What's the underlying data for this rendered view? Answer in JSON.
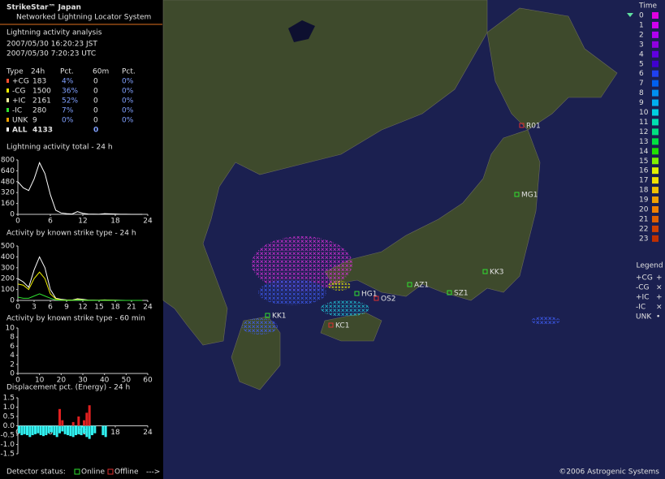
{
  "header": {
    "title": "StrikeStar™ Japan",
    "subtitle": "Networked Lightning Locator System"
  },
  "analysis": {
    "title": "Lightning activity analysis",
    "time_local": "2007/05/30 16:20:23 JST",
    "time_utc": "2007/05/30 7:20:23 UTC"
  },
  "table": {
    "header": [
      "Type",
      "24h",
      "Pct.",
      "60m",
      "Pct."
    ],
    "rows": [
      [
        "+CG",
        "183",
        "4%",
        "0",
        "0%"
      ],
      [
        "-CG",
        "1500",
        "36%",
        "0",
        "0%"
      ],
      [
        "+IC",
        "2161",
        "52%",
        "0",
        "0%"
      ],
      [
        "-IC",
        "280",
        "7%",
        "0",
        "0%"
      ],
      [
        "UNK",
        "9",
        "0%",
        "0",
        "0%"
      ],
      [
        "ALL",
        "4133",
        "0"
      ]
    ],
    "row_colors": [
      "#ff5030",
      "#f0f000",
      "#ffffa0",
      "#30e030",
      "#f0a000",
      "#ffffff"
    ]
  },
  "panels": [
    {
      "type": "line",
      "title": "Lightning activity total - 24 h",
      "xlim": [
        0,
        24
      ],
      "ylim": [
        0,
        800
      ],
      "xticks": [
        0,
        6,
        12,
        18,
        24
      ],
      "yticks": [
        0,
        160,
        320,
        480,
        640,
        800
      ],
      "x": [
        0,
        1,
        2,
        3,
        4,
        5,
        6,
        7,
        8,
        9,
        10,
        11,
        12,
        13,
        14,
        15,
        16,
        17,
        18,
        19,
        20,
        21,
        22,
        23
      ],
      "series": [
        {
          "color": "#ffffff",
          "values": [
            480,
            390,
            350,
            520,
            760,
            600,
            290,
            60,
            20,
            10,
            5,
            40,
            15,
            5,
            3,
            2,
            10,
            8,
            5,
            2,
            1,
            0,
            0,
            0
          ]
        }
      ]
    },
    {
      "type": "line",
      "title": "Activity by known strike type - 24 h",
      "xlim": [
        0,
        24
      ],
      "ylim": [
        0,
        500
      ],
      "xticks": [
        0,
        3,
        6,
        9,
        12,
        15,
        18,
        21,
        24
      ],
      "yticks": [
        0,
        100,
        200,
        300,
        400,
        500
      ],
      "x": [
        0,
        1,
        2,
        3,
        4,
        5,
        6,
        7,
        8,
        9,
        10,
        11,
        12,
        13,
        14,
        15,
        16,
        17,
        18,
        19,
        20,
        21,
        22,
        23
      ],
      "series": [
        {
          "color": "#ffffff",
          "values": [
            200,
            170,
            120,
            280,
            400,
            300,
            100,
            20,
            10,
            5,
            3,
            15,
            10,
            3,
            2,
            1,
            5,
            3,
            2,
            1,
            0,
            0,
            0,
            0
          ]
        },
        {
          "color": "#f0f000",
          "values": [
            150,
            140,
            100,
            200,
            260,
            200,
            60,
            15,
            5,
            3,
            2,
            8,
            5,
            2,
            1,
            1,
            3,
            2,
            1,
            0,
            0,
            0,
            0,
            0
          ]
        },
        {
          "color": "#30e030",
          "values": [
            30,
            20,
            20,
            40,
            60,
            40,
            20,
            5,
            2,
            1,
            1,
            3,
            2,
            1,
            0,
            0,
            1,
            1,
            0,
            0,
            0,
            0,
            0,
            0
          ]
        }
      ]
    },
    {
      "type": "line",
      "title": "Activity by known strike type - 60 min",
      "xlim": [
        0,
        60
      ],
      "ylim": [
        0,
        10
      ],
      "xticks": [
        0,
        10,
        20,
        30,
        40,
        50,
        60
      ],
      "yticks": [
        0,
        2,
        4,
        6,
        8,
        10
      ],
      "series": []
    },
    {
      "type": "bar",
      "title": "Displacement pct. (Energy) - 24 h",
      "xlim": [
        0,
        24
      ],
      "ylim": [
        -1.5,
        1.5
      ],
      "xticks": [
        0,
        6,
        12,
        18,
        24
      ],
      "yticks": [
        -1.5,
        {
          "value": -1,
          "label": "-1.0"
        },
        -0.5,
        {
          "value": 0,
          "label": "0.0"
        },
        0.5,
        {
          "value": 1,
          "label": "1.0"
        },
        1.5
      ],
      "x": [
        0,
        0.5,
        1,
        1.5,
        2,
        2.5,
        3,
        3.5,
        4,
        4.5,
        5,
        5.5,
        6,
        6.5,
        7,
        7.5,
        8,
        8.5,
        9,
        9.5,
        10,
        10.5,
        11,
        11.5,
        12,
        12.5,
        13,
        13.5,
        14,
        14.5,
        15,
        15.5,
        16
      ],
      "series": [
        {
          "color": "#30f0f0",
          "values": [
            -0.4,
            -0.5,
            -0.45,
            -0.5,
            -0.6,
            -0.5,
            -0.45,
            -0.4,
            -0.5,
            -0.55,
            -0.5,
            -0.4,
            -0.35,
            -0.5,
            -0.6,
            -0.4,
            -0.3,
            -0.45,
            -0.5,
            -0.55,
            -0.6,
            -0.5,
            -0.45,
            -0.5,
            -0.4,
            -0.6,
            -0.7,
            -0.5,
            -0.4,
            null,
            null,
            -0.5,
            -0.6
          ]
        },
        {
          "color": "#e02020",
          "values": [
            null,
            null,
            null,
            null,
            null,
            null,
            null,
            null,
            null,
            null,
            null,
            null,
            null,
            null,
            null,
            0.9,
            0.3,
            null,
            null,
            null,
            0.2,
            null,
            0.5,
            null,
            0.3,
            0.7,
            1.1,
            null,
            null,
            null,
            null,
            null,
            null
          ]
        }
      ]
    }
  ],
  "map": {
    "stations": [
      "R01",
      "MG1",
      "KK3",
      "AZ1",
      "SZ1",
      "HG1",
      "OS2",
      "KC1",
      "KK1"
    ]
  },
  "time_legend": {
    "title": "Time",
    "hours": [
      0,
      1,
      2,
      3,
      4,
      5,
      6,
      7,
      8,
      9,
      10,
      11,
      12,
      13,
      14,
      15,
      16,
      17,
      18,
      19,
      20,
      21,
      22,
      23
    ],
    "colors": [
      "#e000e0",
      "#d000f0",
      "#b000f0",
      "#9000e0",
      "#6000e0",
      "#4000d0",
      "#2040f0",
      "#0060f0",
      "#0090f0",
      "#00b0f0",
      "#00d0e0",
      "#00e0b0",
      "#00e080",
      "#00e040",
      "#20e000",
      "#80f000",
      "#e0f000",
      "#f0e000",
      "#f0c000",
      "#f0a000",
      "#f08000",
      "#e06000",
      "#d04000",
      "#c03000"
    ]
  },
  "legend": {
    "title": "Legend",
    "entries": [
      "+CG",
      "-CG",
      "+IC",
      "-IC",
      "UNK"
    ]
  },
  "footer": {
    "status": "Detector status:",
    "online": "Online",
    "offline": "Offline",
    "arrow": "--->",
    "copyright": "©2006 Astrogenic Systems"
  }
}
